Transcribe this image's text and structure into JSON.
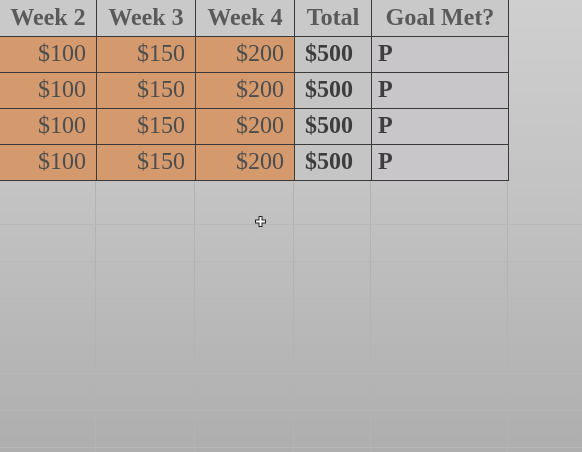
{
  "spreadsheet": {
    "headers": [
      "Week 2",
      "Week 3",
      "Week 4",
      "Total",
      "Goal Met?"
    ],
    "rows": [
      {
        "week2": "$100",
        "week3": "$150",
        "week4": "$200",
        "total": "$500",
        "goal": "P"
      },
      {
        "week2": "$100",
        "week3": "$150",
        "week4": "$200",
        "total": "$500",
        "goal": "P"
      },
      {
        "week2": "$100",
        "week3": "$150",
        "week4": "$200",
        "total": "$500",
        "goal": "P"
      },
      {
        "week2": "$100",
        "week3": "$150",
        "week4": "$200",
        "total": "$500",
        "goal": "P"
      }
    ]
  },
  "colors": {
    "money_fill": "#d49a6e",
    "total_fill": "#c5c5c5",
    "header_fill": "#c9c9c9"
  },
  "cursor": {
    "icon": "plus-cursor-icon"
  }
}
